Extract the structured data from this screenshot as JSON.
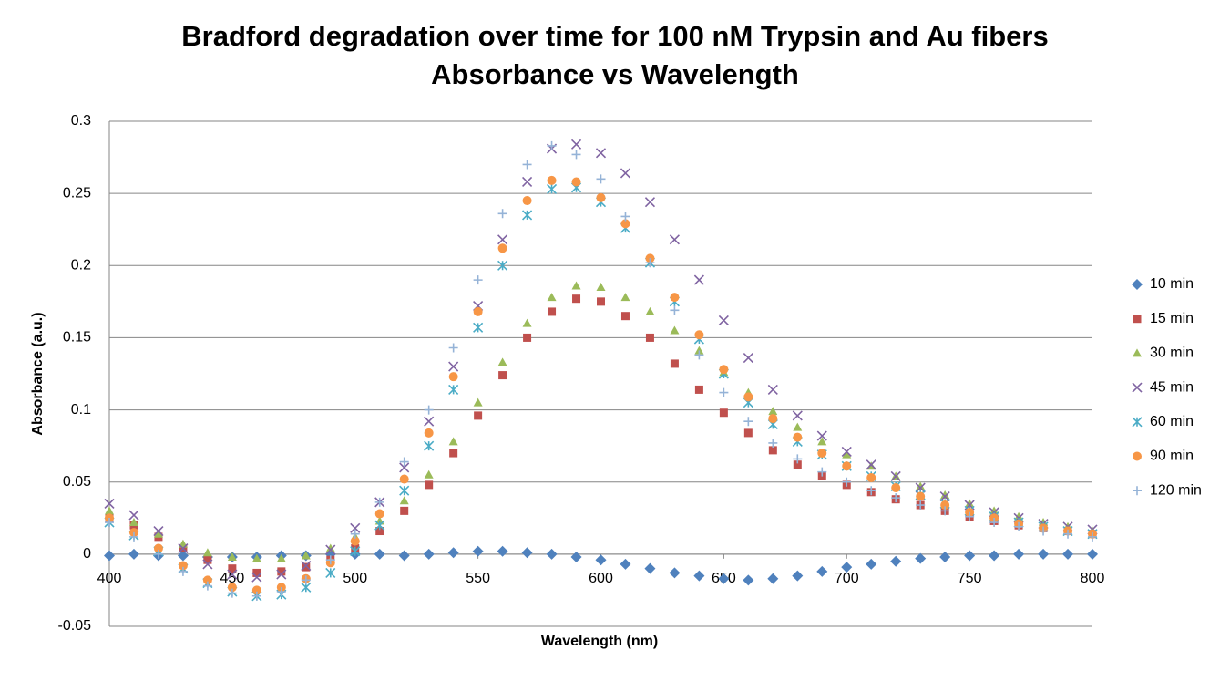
{
  "chart_data": {
    "type": "scatter",
    "title": [
      "Bradford degradation over time for 100 nM Trypsin and Au fibers",
      "Absorbance vs Wavelength"
    ],
    "x_label": "Wavelength (nm)",
    "y_label": "Absorbance (a.u.)",
    "xlim": [
      400,
      800
    ],
    "xticks": [
      400,
      450,
      500,
      550,
      600,
      650,
      700,
      750,
      800
    ],
    "ylim": [
      -0.05,
      0.3
    ],
    "yticks": [
      -0.05,
      0,
      0.05,
      0.1,
      0.15,
      0.2,
      0.25,
      0.3
    ],
    "grid": true,
    "legend": "right",
    "x": [
      400,
      410,
      420,
      430,
      440,
      450,
      460,
      470,
      480,
      490,
      500,
      510,
      520,
      530,
      540,
      550,
      560,
      570,
      580,
      590,
      600,
      610,
      620,
      630,
      640,
      650,
      660,
      670,
      680,
      690,
      700,
      710,
      720,
      730,
      740,
      750,
      760,
      770,
      780,
      790,
      800
    ],
    "series": [
      {
        "name": "10 min",
        "color": "#4f81bd",
        "marker": "diamond",
        "values": [
          -0.001,
          0,
          -0.001,
          -0.001,
          -0.002,
          -0.002,
          -0.002,
          -0.001,
          -0.001,
          0,
          0,
          0,
          -0.001,
          0,
          0.001,
          0.002,
          0.002,
          0.001,
          0,
          -0.002,
          -0.004,
          -0.007,
          -0.01,
          -0.013,
          -0.015,
          -0.017,
          -0.018,
          -0.017,
          -0.015,
          -0.012,
          -0.009,
          -0.007,
          -0.005,
          -0.003,
          -0.002,
          -0.001,
          -0.001,
          0,
          0,
          0,
          0
        ]
      },
      {
        "name": "15 min",
        "color": "#c0504d",
        "marker": "square",
        "values": [
          0.025,
          0.02,
          0.012,
          0.004,
          -0.004,
          -0.01,
          -0.013,
          -0.012,
          -0.009,
          -0.004,
          0.004,
          0.016,
          0.03,
          0.048,
          0.07,
          0.096,
          0.124,
          0.15,
          0.168,
          0.177,
          0.175,
          0.165,
          0.15,
          0.132,
          0.114,
          0.098,
          0.084,
          0.072,
          0.062,
          0.054,
          0.048,
          0.043,
          0.038,
          0.034,
          0.03,
          0.026,
          0.023,
          0.02,
          0.018,
          0.016,
          0.014
        ]
      },
      {
        "name": "30 min",
        "color": "#9bbb59",
        "marker": "triangle",
        "values": [
          0.03,
          0.022,
          0.014,
          0.007,
          0.001,
          -0.002,
          -0.003,
          -0.003,
          -0.001,
          0.004,
          0.012,
          0.023,
          0.037,
          0.055,
          0.078,
          0.105,
          0.133,
          0.16,
          0.178,
          0.186,
          0.185,
          0.178,
          0.168,
          0.155,
          0.141,
          0.126,
          0.112,
          0.099,
          0.088,
          0.078,
          0.069,
          0.061,
          0.054,
          0.047,
          0.041,
          0.035,
          0.03,
          0.026,
          0.022,
          0.019,
          0.016
        ]
      },
      {
        "name": "45 min",
        "color": "#8064a2",
        "marker": "x",
        "values": [
          0.035,
          0.027,
          0.016,
          0.004,
          -0.007,
          -0.014,
          -0.016,
          -0.014,
          -0.008,
          0.003,
          0.018,
          0.036,
          0.06,
          0.092,
          0.13,
          0.172,
          0.218,
          0.258,
          0.281,
          0.284,
          0.278,
          0.264,
          0.244,
          0.218,
          0.19,
          0.162,
          0.136,
          0.114,
          0.096,
          0.082,
          0.071,
          0.062,
          0.054,
          0.046,
          0.04,
          0.034,
          0.029,
          0.025,
          0.021,
          0.019,
          0.017
        ]
      },
      {
        "name": "60 min",
        "color": "#4bacc6",
        "marker": "asterisk",
        "values": [
          0.022,
          0.013,
          0.002,
          -0.01,
          -0.02,
          -0.026,
          -0.029,
          -0.028,
          -0.023,
          -0.013,
          0.002,
          0.02,
          0.044,
          0.075,
          0.114,
          0.157,
          0.2,
          0.235,
          0.253,
          0.254,
          0.244,
          0.226,
          0.202,
          0.175,
          0.149,
          0.125,
          0.105,
          0.09,
          0.078,
          0.069,
          0.061,
          0.054,
          0.047,
          0.041,
          0.035,
          0.03,
          0.026,
          0.022,
          0.019,
          0.016,
          0.014
        ]
      },
      {
        "name": "90 min",
        "color": "#f79646",
        "marker": "circle",
        "values": [
          0.025,
          0.015,
          0.004,
          -0.008,
          -0.018,
          -0.023,
          -0.025,
          -0.023,
          -0.017,
          -0.006,
          0.009,
          0.028,
          0.052,
          0.084,
          0.123,
          0.168,
          0.212,
          0.245,
          0.259,
          0.258,
          0.247,
          0.229,
          0.205,
          0.178,
          0.152,
          0.128,
          0.109,
          0.094,
          0.081,
          0.07,
          0.061,
          0.053,
          0.046,
          0.04,
          0.034,
          0.029,
          0.025,
          0.021,
          0.018,
          0.016,
          0.014
        ]
      },
      {
        "name": "120 min",
        "color": "#95b3d7",
        "marker": "plus",
        "values": [
          0.022,
          0.012,
          0,
          -0.012,
          -0.022,
          -0.027,
          -0.029,
          -0.026,
          -0.018,
          -0.004,
          0.014,
          0.036,
          0.064,
          0.1,
          0.143,
          0.19,
          0.236,
          0.27,
          0.283,
          0.277,
          0.26,
          0.234,
          0.202,
          0.169,
          0.138,
          0.112,
          0.092,
          0.077,
          0.066,
          0.057,
          0.05,
          0.044,
          0.039,
          0.034,
          0.03,
          0.026,
          0.022,
          0.019,
          0.016,
          0.014,
          0.012
        ]
      }
    ]
  }
}
